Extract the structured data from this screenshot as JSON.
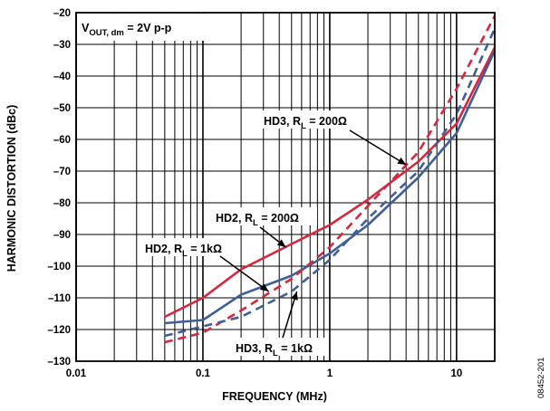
{
  "chart_data": {
    "type": "line",
    "xlabel": "FREQUENCY (MHz)",
    "ylabel": "HARMONIC DISTORTION (dBc)",
    "x_scale": "log",
    "xlim": [
      0.01,
      20
    ],
    "ylim": [
      -130,
      -20
    ],
    "x_ticks": [
      0.01,
      0.1,
      1,
      10
    ],
    "x_tick_labels": [
      "0.01",
      "0.1",
      "1",
      "10"
    ],
    "y_ticks": [
      -20,
      -30,
      -40,
      -50,
      -60,
      -70,
      -80,
      -90,
      -100,
      -110,
      -120,
      -130
    ],
    "y_tick_labels": [
      "–20",
      "–30",
      "–40",
      "–50",
      "–60",
      "–70",
      "–80",
      "–90",
      "–100",
      "–110",
      "–120",
      "–130"
    ],
    "grid": true,
    "condition": {
      "main": "V",
      "sub": "OUT, dm",
      "rest": " = 2V p-p"
    },
    "figure_id": "08452-201",
    "colors": {
      "red": "#d7263d",
      "blue": "#3f5e9a",
      "grid": "#000000"
    },
    "series": [
      {
        "label_main": "HD2, R",
        "label_sub": "L",
        "label_rest": " = 200Ω",
        "color": "red",
        "dash": false,
        "x": [
          0.05,
          0.1,
          0.2,
          0.5,
          1,
          2,
          5,
          10,
          20
        ],
        "y": [
          -116,
          -110,
          -101,
          -93,
          -87,
          -79,
          -67,
          -55,
          -31
        ]
      },
      {
        "label_main": "HD2, R",
        "label_sub": "L",
        "label_rest": " = 1kΩ",
        "color": "blue",
        "dash": false,
        "x": [
          0.05,
          0.1,
          0.2,
          0.5,
          1,
          2,
          5,
          10,
          20
        ],
        "y": [
          -118,
          -117,
          -109,
          -103,
          -96,
          -87,
          -72,
          -58,
          -32
        ]
      },
      {
        "label_main": "HD3, R",
        "label_sub": "L",
        "label_rest": " = 200Ω",
        "color": "red",
        "dash": true,
        "x": [
          0.05,
          0.1,
          0.2,
          0.5,
          1,
          2,
          5,
          10,
          20
        ],
        "y": [
          -124,
          -121,
          -114,
          -104,
          -94,
          -81,
          -64,
          -44,
          -21
        ]
      },
      {
        "label_main": "HD3, R",
        "label_sub": "L",
        "label_rest": " = 1kΩ",
        "color": "blue",
        "dash": true,
        "x": [
          0.05,
          0.1,
          0.2,
          0.5,
          1,
          2,
          5,
          10,
          20
        ],
        "y": [
          -122,
          -119,
          -116,
          -108,
          -98,
          -85,
          -70,
          -52,
          -25
        ]
      }
    ]
  }
}
